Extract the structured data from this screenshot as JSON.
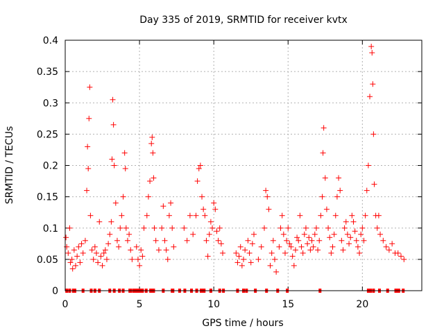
{
  "chart_data": {
    "type": "scatter",
    "title": "Day 335 of 2019, SRMTID for receiver kvtx",
    "xlabel": "GPS time / hours",
    "ylabel": "SRMTID / TECUs",
    "xlim": [
      0,
      24
    ],
    "ylim": [
      0,
      0.4
    ],
    "xticks": [
      0,
      5,
      10,
      15,
      20
    ],
    "xtick_labels": [
      "0",
      "5",
      "10",
      "15",
      "20"
    ],
    "yticks": [
      0,
      0.05,
      0.1,
      0.15,
      0.2,
      0.25,
      0.3,
      0.35,
      0.4
    ],
    "ytick_labels": [
      "0",
      "0.05",
      "0.1",
      "0.15",
      "0.2",
      "0.25",
      "0.3",
      "0.35",
      "0.4"
    ],
    "grid": true,
    "marker": "+",
    "series": [
      {
        "name": "SRMTID",
        "color": "#ff0000",
        "x": [
          0.05,
          0.1,
          0.2,
          0.3,
          0.35,
          0.45,
          0.5,
          0.6,
          0.7,
          0.8,
          0.9,
          1.0,
          1.1,
          1.2,
          1.35,
          1.45,
          1.5,
          1.55,
          1.6,
          1.65,
          1.7,
          1.8,
          1.9,
          2.0,
          2.1,
          2.2,
          2.3,
          2.4,
          2.5,
          2.6,
          2.7,
          2.8,
          2.9,
          3.0,
          3.1,
          3.15,
          3.2,
          3.25,
          3.3,
          3.4,
          3.5,
          3.6,
          3.7,
          3.8,
          3.9,
          4.0,
          4.05,
          4.1,
          4.2,
          4.3,
          4.4,
          4.5,
          4.8,
          4.9,
          5.0,
          5.1,
          5.2,
          5.3,
          5.5,
          5.6,
          5.7,
          5.8,
          5.85,
          5.9,
          5.95,
          6.0,
          6.1,
          6.3,
          6.5,
          6.6,
          6.7,
          6.8,
          6.9,
          7.0,
          7.1,
          7.2,
          7.3,
          8.0,
          8.2,
          8.4,
          8.6,
          8.8,
          8.9,
          9.0,
          9.1,
          9.2,
          9.3,
          9.4,
          9.5,
          9.6,
          9.7,
          9.8,
          9.9,
          10.0,
          10.1,
          10.2,
          10.3,
          10.4,
          10.5,
          10.6,
          11.5,
          11.6,
          11.7,
          11.8,
          11.9,
          12.0,
          12.1,
          12.3,
          12.4,
          12.5,
          12.6,
          12.7,
          13.0,
          13.2,
          13.4,
          13.5,
          13.6,
          13.7,
          13.8,
          13.9,
          14.0,
          14.1,
          14.2,
          14.4,
          14.5,
          14.6,
          14.7,
          14.8,
          14.9,
          15.0,
          15.1,
          15.2,
          15.3,
          15.4,
          15.5,
          15.6,
          15.7,
          15.8,
          15.9,
          16.0,
          16.1,
          16.2,
          16.3,
          16.4,
          16.5,
          16.6,
          16.7,
          16.8,
          16.9,
          17.0,
          17.1,
          17.2,
          17.3,
          17.35,
          17.4,
          17.5,
          17.6,
          17.7,
          17.8,
          17.9,
          18.0,
          18.1,
          18.2,
          18.3,
          18.4,
          18.5,
          18.6,
          18.7,
          18.8,
          18.9,
          19.0,
          19.1,
          19.2,
          19.3,
          19.4,
          19.5,
          19.6,
          19.7,
          19.8,
          19.9,
          20.0,
          20.1,
          20.2,
          20.3,
          20.4,
          20.5,
          20.6,
          20.65,
          20.7,
          20.75,
          20.8,
          20.9,
          21.0,
          21.1,
          21.2,
          21.4,
          21.6,
          21.8,
          22.0,
          22.2,
          22.4,
          22.6,
          22.8
        ],
        "y": [
          0.085,
          0.07,
          0.06,
          0.1,
          0.045,
          0.05,
          0.035,
          0.065,
          0.04,
          0.055,
          0.07,
          0.045,
          0.075,
          0.06,
          0.08,
          0.16,
          0.23,
          0.195,
          0.275,
          0.325,
          0.12,
          0.065,
          0.05,
          0.07,
          0.06,
          0.045,
          0.11,
          0.055,
          0.04,
          0.06,
          0.065,
          0.05,
          0.075,
          0.09,
          0.11,
          0.21,
          0.305,
          0.265,
          0.2,
          0.14,
          0.08,
          0.07,
          0.1,
          0.12,
          0.15,
          0.22,
          0.195,
          0.1,
          0.08,
          0.09,
          0.065,
          0.05,
          0.07,
          0.05,
          0.04,
          0.065,
          0.055,
          0.1,
          0.12,
          0.15,
          0.175,
          0.235,
          0.245,
          0.22,
          0.18,
          0.1,
          0.08,
          0.065,
          0.1,
          0.135,
          0.08,
          0.065,
          0.05,
          0.12,
          0.14,
          0.1,
          0.07,
          0.1,
          0.08,
          0.12,
          0.09,
          0.12,
          0.175,
          0.195,
          0.2,
          0.15,
          0.13,
          0.12,
          0.08,
          0.055,
          0.09,
          0.11,
          0.1,
          0.14,
          0.13,
          0.095,
          0.08,
          0.1,
          0.075,
          0.06,
          0.06,
          0.045,
          0.055,
          0.07,
          0.04,
          0.05,
          0.065,
          0.08,
          0.06,
          0.045,
          0.075,
          0.09,
          0.05,
          0.07,
          0.1,
          0.16,
          0.15,
          0.13,
          0.04,
          0.06,
          0.08,
          0.05,
          0.03,
          0.07,
          0.1,
          0.12,
          0.09,
          0.06,
          0.08,
          0.1,
          0.075,
          0.07,
          0.055,
          0.04,
          0.065,
          0.085,
          0.08,
          0.12,
          0.07,
          0.06,
          0.09,
          0.1,
          0.075,
          0.085,
          0.065,
          0.08,
          0.07,
          0.09,
          0.1,
          0.065,
          0.08,
          0.12,
          0.15,
          0.22,
          0.26,
          0.18,
          0.13,
          0.1,
          0.085,
          0.06,
          0.07,
          0.09,
          0.12,
          0.15,
          0.18,
          0.16,
          0.08,
          0.065,
          0.1,
          0.11,
          0.09,
          0.075,
          0.085,
          0.12,
          0.11,
          0.095,
          0.08,
          0.07,
          0.06,
          0.09,
          0.1,
          0.08,
          0.12,
          0.16,
          0.2,
          0.31,
          0.39,
          0.38,
          0.33,
          0.25,
          0.17,
          0.12,
          0.1,
          0.12,
          0.09,
          0.08,
          0.07,
          0.065,
          0.075,
          0.06,
          0.06,
          0.055,
          0.05
        ]
      }
    ],
    "zero_line_x": [
      0.1,
      0.3,
      0.55,
      0.65,
      1.2,
      1.75,
      2.0,
      2.3,
      3.0,
      3.3,
      3.65,
      3.9,
      4.35,
      4.4,
      4.6,
      4.75,
      4.8,
      4.85,
      4.95,
      5.1,
      5.2,
      5.45,
      5.75,
      5.85,
      5.95,
      6.6,
      7.2,
      7.25,
      7.7,
      8.05,
      8.5,
      8.85,
      9.15,
      9.3,
      9.35,
      9.8,
      10.4,
      10.65,
      11.6,
      12.0,
      12.2,
      12.8,
      13.55,
      14.3,
      14.95,
      17.15,
      20.4,
      20.55,
      20.75,
      21.15,
      21.7,
      22.25,
      22.3,
      22.45,
      22.75
    ]
  }
}
